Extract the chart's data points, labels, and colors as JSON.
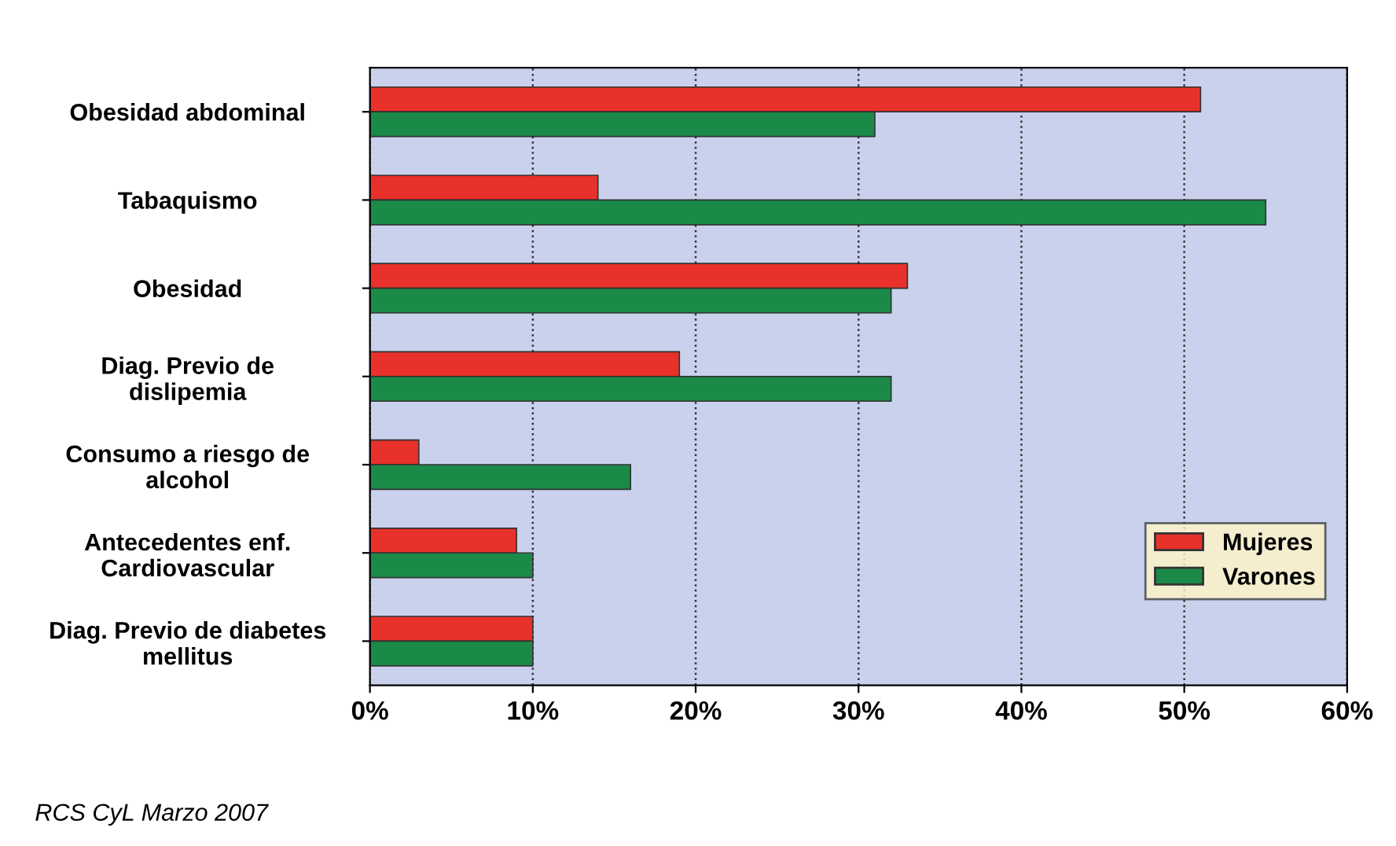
{
  "chart_data": {
    "type": "bar",
    "orientation": "horizontal",
    "categories": [
      "Obesidad abdominal",
      "Tabaquismo",
      "Obesidad",
      "Diag. Previo de\ndislipemia",
      "Consumo a riesgo de\nalcohol",
      "Antecedentes enf.\nCardiovascular",
      "Diag. Previo de diabetes\nmellitus"
    ],
    "series": [
      {
        "name": "Mujeres",
        "color": "#e8312b",
        "values": [
          51,
          14,
          33,
          19,
          3,
          9,
          10
        ]
      },
      {
        "name": "Varones",
        "color": "#1b8a48",
        "values": [
          31,
          55,
          32,
          32,
          16,
          10,
          10
        ]
      }
    ],
    "xlim": [
      0,
      60
    ],
    "xticks": [
      {
        "value": 0,
        "label": "0%"
      },
      {
        "value": 10,
        "label": "10%"
      },
      {
        "value": 20,
        "label": "20%"
      },
      {
        "value": 30,
        "label": "30%"
      },
      {
        "value": 40,
        "label": "40%"
      },
      {
        "value": 50,
        "label": "50%"
      },
      {
        "value": 60,
        "label": "60%"
      }
    ],
    "grid": "x",
    "legend": "bottom right",
    "annotations": [
      "RCS CyL Marzo 2007"
    ]
  }
}
